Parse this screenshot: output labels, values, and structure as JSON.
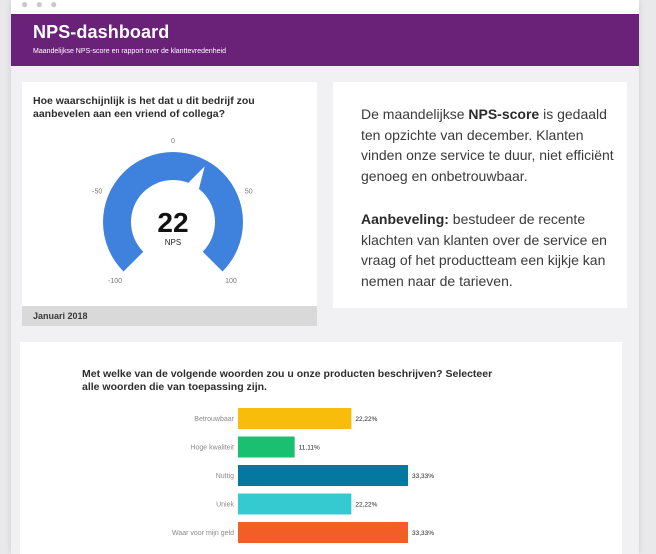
{
  "header": {
    "title": "NPS-dashboard",
    "subtitle": "Maandelijkse NPS-score en rapport over de klanttevredenheid",
    "bg_color": "#6a2178"
  },
  "gauge": {
    "question": "Hoe waarschijnlijk is het dat u dit bedrijf zou aanbevelen aan een vriend of collega?",
    "value": 22,
    "value_text": "22",
    "unit_label": "NPS",
    "min": -100,
    "max": 100,
    "tick_labels": [
      "-100",
      "-50",
      "0",
      "50",
      "100"
    ],
    "tick_values": [
      -100,
      -50,
      0,
      50,
      100
    ],
    "color": "#3f82de",
    "footer": "Januari 2018"
  },
  "summary": {
    "p1_pre": "De maandelijkse ",
    "p1_bold": "NPS-score",
    "p1_post": " is gedaald ten opzichte van december. Klanten vinden onze service te duur, niet efficiënt genoeg en onbetrouwbaar.",
    "p2_bold": "Aanbeveling:",
    "p2_post": " bestudeer de recente klachten van klanten over de service en vraag of het productteam een kijkje kan nemen naar de tarieven."
  },
  "bars": {
    "question": "Met welke van de volgende woorden zou u onze producten beschrijven? Selecteer alle woorden die van toepassing zijn.",
    "chart_data": {
      "type": "bar",
      "orientation": "horizontal",
      "categories": [
        "Betrouwbaar",
        "Hoge kwaliteit",
        "Nuttig",
        "Uniek",
        "Waar voor mijn geld"
      ],
      "values": [
        22.22,
        11.11,
        33.33,
        22.22,
        33.33
      ],
      "value_labels": [
        "22,22%",
        "11,11%",
        "33,33%",
        "22,22%",
        "33,33%"
      ],
      "colors": [
        "#f8bc0a",
        "#19c06f",
        "#05789f",
        "#35cad0",
        "#f25e25"
      ],
      "xmax": 33.33
    }
  }
}
